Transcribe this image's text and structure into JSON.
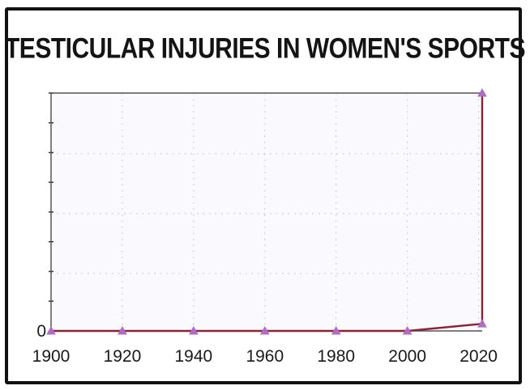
{
  "chart_data": {
    "type": "line",
    "title": "TESTICULAR INJURIES IN WOMEN'S SPORTS",
    "xlabel": "",
    "ylabel": "",
    "x_ticks": [
      "1900",
      "1920",
      "1940",
      "1960",
      "1980",
      "2000",
      "2020"
    ],
    "y_ticks": [
      "0"
    ],
    "xlim": [
      1900,
      2021
    ],
    "ylim": [
      0,
      100
    ],
    "grid": true,
    "series": [
      {
        "x": [
          1900,
          1920,
          1940,
          1960,
          1980,
          2000,
          2021,
          2021
        ],
        "y": [
          0,
          0,
          0,
          0,
          0,
          0,
          3,
          100
        ]
      }
    ]
  },
  "colors": {
    "line": "#8b2332",
    "marker": "#b06ac7",
    "grid": "#c8c8c8",
    "plot_bg": "#fafafe"
  }
}
